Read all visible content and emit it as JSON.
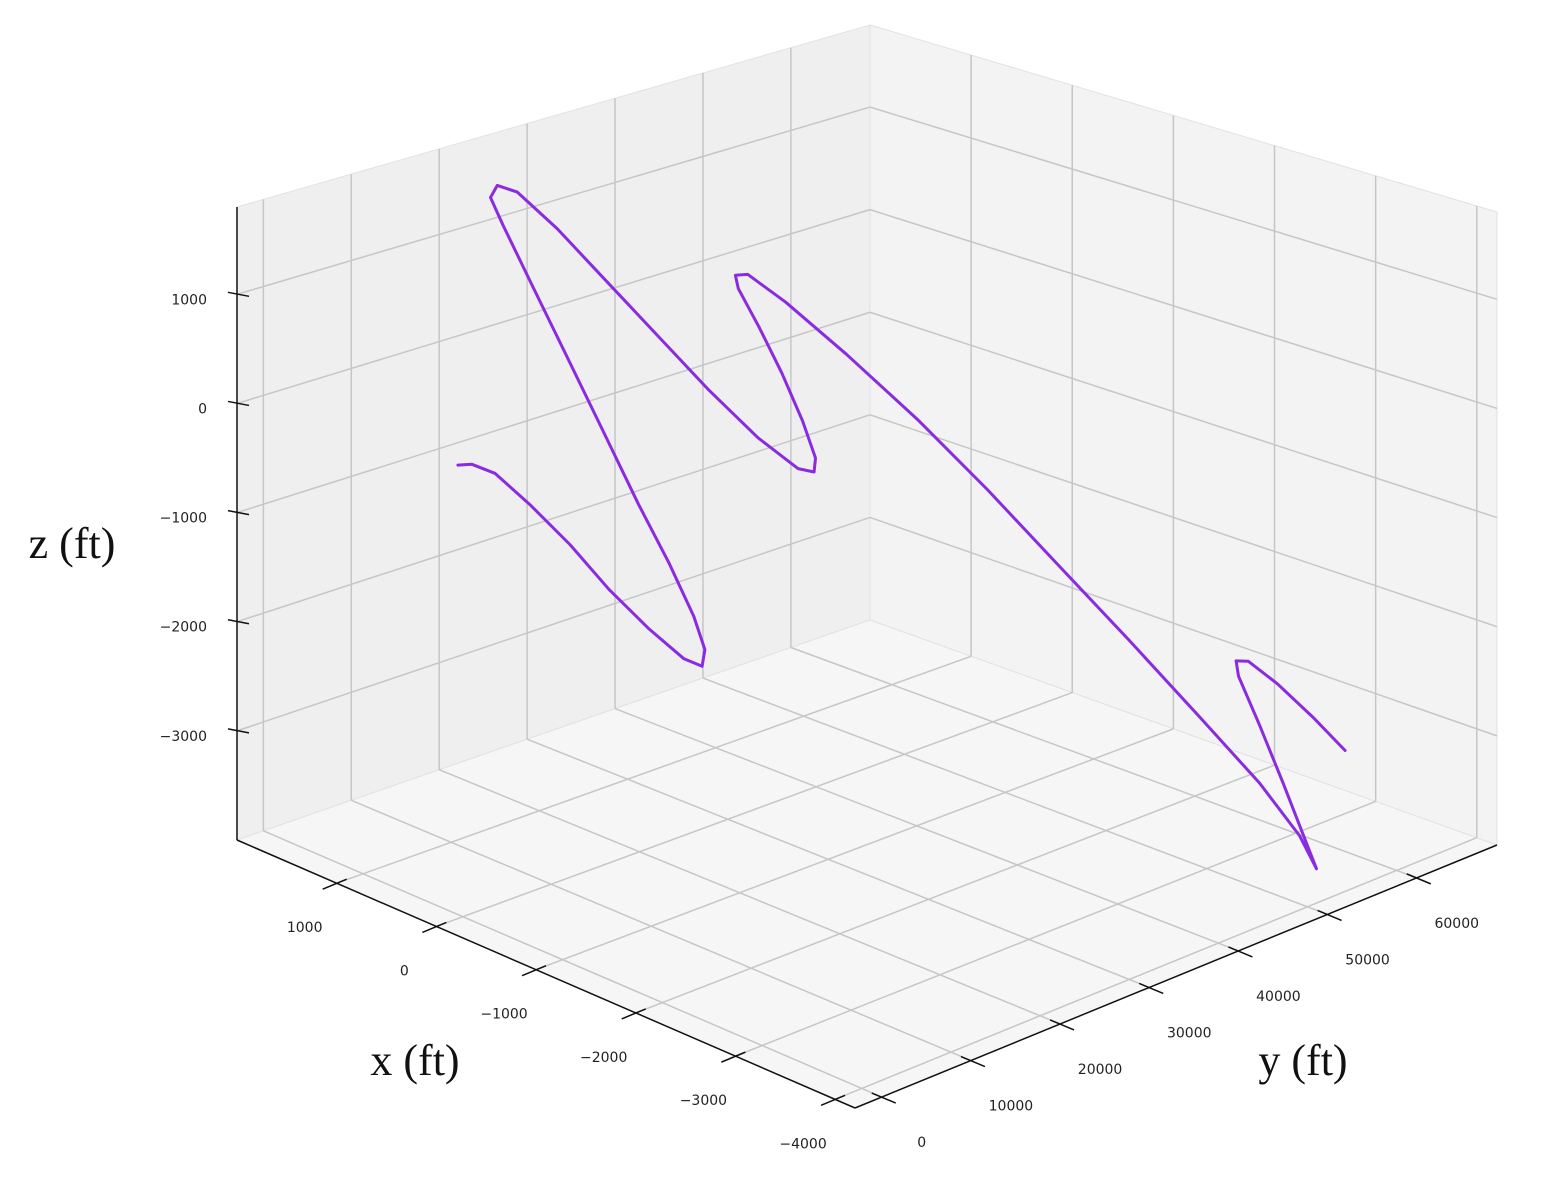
{
  "chart_data": {
    "type": "line3d",
    "xlabel": "x (ft)",
    "ylabel": "y (ft)",
    "zlabel": "z (ft)",
    "xlim": [
      -4200,
      2000
    ],
    "ylim": [
      -3000,
      69000
    ],
    "zlim": [
      -4000,
      1800
    ],
    "xticks": [
      {
        "value": 1000,
        "label": "1000"
      },
      0,
      {
        "value": -1000,
        "label": "−1000"
      },
      {
        "value": -2000,
        "label": "−2000"
      },
      {
        "value": -3000,
        "label": "−3000"
      },
      {
        "value": -4000,
        "label": "−4000"
      }
    ],
    "yticks": [
      0,
      10000,
      20000,
      30000,
      40000,
      50000,
      60000
    ],
    "zticks": [
      {
        "value": -3000,
        "label": "−3000"
      },
      {
        "value": -2000,
        "label": "−2000"
      },
      {
        "value": -1000,
        "label": "−1000"
      },
      0,
      1000
    ],
    "grid": true,
    "series": [
      {
        "color": "#8a2be2",
        "x": [
          50,
          20,
          -100,
          -340,
          -630,
          -910,
          -1200,
          -1440,
          -1510,
          -1450,
          -1250,
          -910,
          -520,
          -80,
          360,
          800,
          1190,
          1400,
          1420,
          1330,
          1040,
          650,
          260,
          -130,
          -520,
          -810,
          -860,
          -750,
          -490,
          -160,
          190,
          520,
          680,
          680,
          390,
          -120,
          -740,
          -1350,
          -1960,
          -2580,
          -3190,
          -3700,
          -4010,
          -4090,
          -3790,
          -3410,
          -2990,
          -2610,
          -2410,
          -2420,
          -2600,
          -2840,
          -3050
        ],
        "y": [
          0,
          1250,
          2500,
          3750,
          5000,
          6250,
          7500,
          8750,
          10000,
          11000,
          12000,
          13000,
          14000,
          15000,
          16000,
          17000,
          18000,
          19000,
          20000,
          21250,
          22500,
          23750,
          25000,
          26250,
          27500,
          28750,
          30000,
          31400,
          32900,
          34300,
          35700,
          37100,
          38600,
          40000,
          41000,
          42000,
          43000,
          44000,
          45000,
          46000,
          47000,
          48000,
          49000,
          50000,
          52000,
          54000,
          56000,
          58000,
          60000,
          61250,
          62500,
          63750,
          65000
        ],
        "z": [
          125,
          110,
          40,
          -190,
          -480,
          -820,
          -1110,
          -1330,
          -1410,
          -1310,
          -1110,
          -770,
          -410,
          70,
          550,
          1030,
          1440,
          1590,
          1670,
          1610,
          1340,
          950,
          560,
          170,
          -180,
          -400,
          -450,
          -400,
          -190,
          100,
          370,
          580,
          610,
          580,
          390,
          50,
          -380,
          -860,
          -1380,
          -1900,
          -2430,
          -2900,
          -3310,
          -3620,
          -3500,
          -3210,
          -2860,
          -2610,
          -2600,
          -2640,
          -2830,
          -3100,
          -3380
        ]
      }
    ]
  }
}
